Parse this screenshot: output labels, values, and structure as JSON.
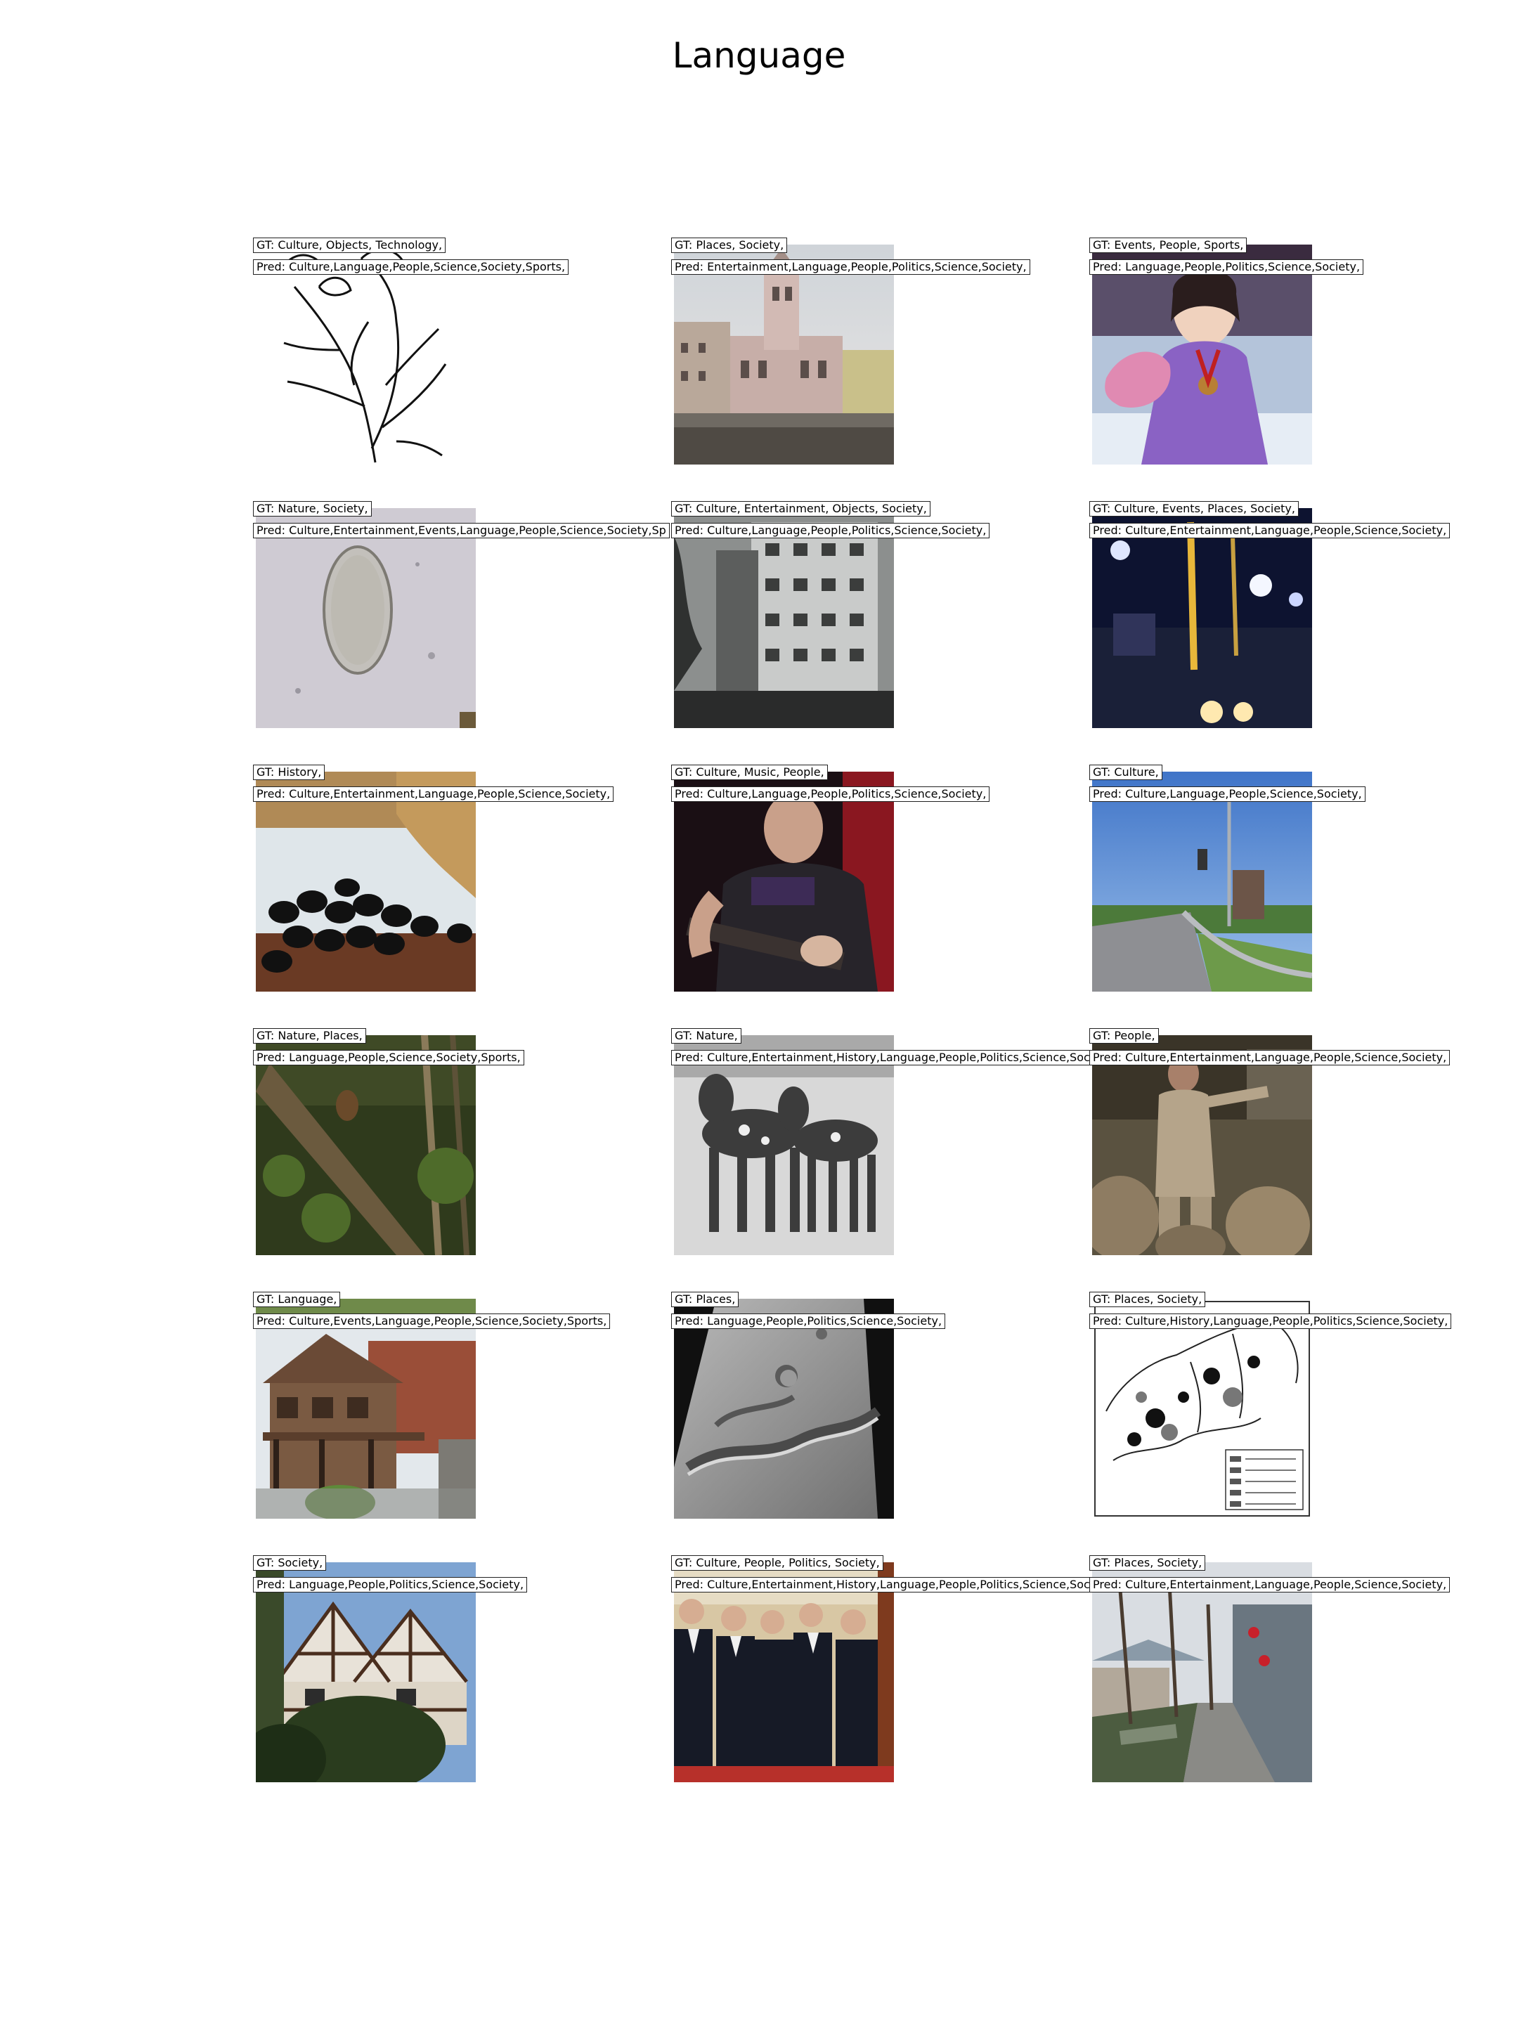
{
  "title": "Language",
  "cells": [
    {
      "gt": "GT: Culture, Objects, Technology,",
      "pred": "Pred: Culture,Language,People,Science,Society,Sports,",
      "image": "line-drawing-plant"
    },
    {
      "gt": "GT: Places, Society,",
      "pred": "Pred: Entertainment,Language,People,Politics,Science,Society,",
      "image": "church-building"
    },
    {
      "gt": "GT: Events, People, Sports,",
      "pred": "Pred: Language,People,Politics,Science,Society,",
      "image": "skater-with-medal"
    },
    {
      "gt": "GT: Nature, Society,",
      "pred": "Pred: Culture,Entertainment,Events,Language,People,Science,Society,Sp",
      "image": "microscope-cell"
    },
    {
      "gt": "GT: Culture, Entertainment, Objects, Society,",
      "pred": "Pred: Culture,Language,People,Politics,Science,Society,",
      "image": "old-building-photo"
    },
    {
      "gt": "GT: Culture, Events, Places, Society,",
      "pred": "Pred: Culture,Entertainment,Language,People,Science,Society,",
      "image": "night-street-lights"
    },
    {
      "gt": "GT: History,",
      "pred": "Pred: Culture,Entertainment,Language,People,Science,Society,",
      "image": "black-birds-water"
    },
    {
      "gt": "GT: Culture, Music, People,",
      "pred": "Pred: Culture,Language,People,Politics,Science,Society,",
      "image": "guitarist-stage"
    },
    {
      "gt": "GT: Culture,",
      "pred": "Pred: Culture,Language,People,Science,Society,",
      "image": "road-and-tower"
    },
    {
      "gt": "GT: Nature, Places,",
      "pred": "Pred: Language,People,Science,Society,Sports,",
      "image": "forest-bird"
    },
    {
      "gt": "GT: Nature,",
      "pred": "Pred: Culture,Entertainment,History,Language,People,Politics,Science,Soc",
      "image": "two-dogs-bw"
    },
    {
      "gt": "GT: People,",
      "pred": "Pred: Culture,Entertainment,Language,People,Science,Society,",
      "image": "soldier-speaking"
    },
    {
      "gt": "GT: Language,",
      "pred": "Pred: Culture,Events,Language,People,Science,Society,Sports,",
      "image": "wooden-house"
    },
    {
      "gt": "GT: Places,",
      "pred": "Pred: Language,People,Politics,Science,Society,",
      "image": "crater-surface"
    },
    {
      "gt": "GT: Places, Society,",
      "pred": "Pred: Culture,History,Language,People,Politics,Science,Society,",
      "image": "europe-map"
    },
    {
      "gt": "GT: Society,",
      "pred": "Pred: Language,People,Politics,Science,Society,",
      "image": "tudor-house"
    },
    {
      "gt": "GT: Culture, People, Politics, Society,",
      "pred": "Pred: Culture,Entertainment,History,Language,People,Politics,Science,Soc",
      "image": "men-in-suits"
    },
    {
      "gt": "GT: Places, Society,",
      "pred": "Pred: Culture,Entertainment,Language,People,Science,Society,",
      "image": "canal-street"
    }
  ]
}
